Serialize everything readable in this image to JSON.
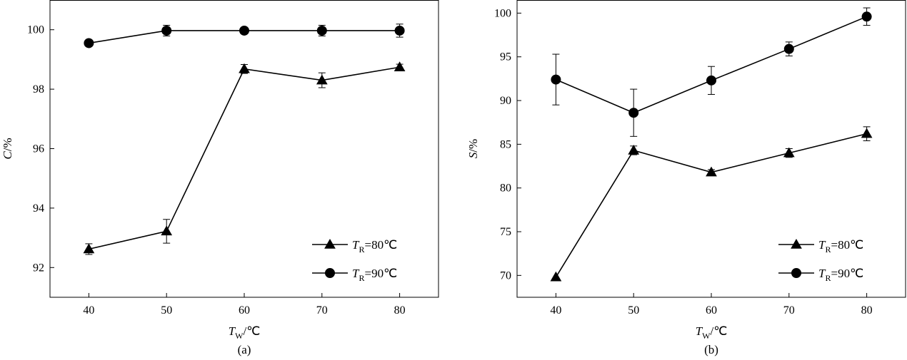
{
  "chart_data": [
    {
      "type": "line",
      "panel_label": "(a)",
      "xlabel": {
        "main": "T",
        "sub": "W",
        "unit": "/℃"
      },
      "ylabel": {
        "main": "C",
        "unit": "/%"
      },
      "xlim": [
        35,
        85
      ],
      "ylim": [
        91,
        101
      ],
      "xticks": [
        40,
        50,
        60,
        70,
        80
      ],
      "yticks": [
        92,
        94,
        96,
        98,
        100
      ],
      "x": [
        40,
        50,
        60,
        70,
        80
      ],
      "legend_position": "bottom-right",
      "series": [
        {
          "name": {
            "main": "T",
            "sub": "R",
            "rest": "=80℃"
          },
          "marker": "triangle",
          "values": [
            92.62,
            93.22,
            98.68,
            98.3,
            98.74
          ],
          "errors": [
            0.18,
            0.4,
            0.15,
            0.25,
            0.1
          ]
        },
        {
          "name": {
            "main": "T",
            "sub": "R",
            "rest": "=90℃"
          },
          "marker": "circle",
          "values": [
            99.55,
            99.97,
            99.97,
            99.97,
            99.97
          ],
          "errors": [
            0.1,
            0.18,
            0.08,
            0.18,
            0.22
          ]
        }
      ]
    },
    {
      "type": "line",
      "panel_label": "(b)",
      "xlabel": {
        "main": "T",
        "sub": "W",
        "unit": "/℃"
      },
      "ylabel": {
        "main": "S",
        "unit": "/%"
      },
      "xlim": [
        35,
        85
      ],
      "ylim": [
        67.5,
        101.5
      ],
      "xticks": [
        40,
        50,
        60,
        70,
        80
      ],
      "yticks": [
        70,
        75,
        80,
        85,
        90,
        95,
        100
      ],
      "x": [
        40,
        50,
        60,
        70,
        80
      ],
      "legend_position": "bottom-right",
      "series": [
        {
          "name": {
            "main": "T",
            "sub": "R",
            "rest": "=80℃"
          },
          "marker": "triangle",
          "values": [
            69.8,
            84.3,
            81.8,
            84.0,
            86.2
          ],
          "errors": [
            0.0,
            0.5,
            0.3,
            0.5,
            0.8
          ]
        },
        {
          "name": {
            "main": "T",
            "sub": "R",
            "rest": "=90℃"
          },
          "marker": "circle",
          "values": [
            92.4,
            88.6,
            92.3,
            95.9,
            99.6
          ],
          "errors": [
            2.9,
            2.7,
            1.6,
            0.8,
            1.0
          ]
        }
      ]
    }
  ]
}
